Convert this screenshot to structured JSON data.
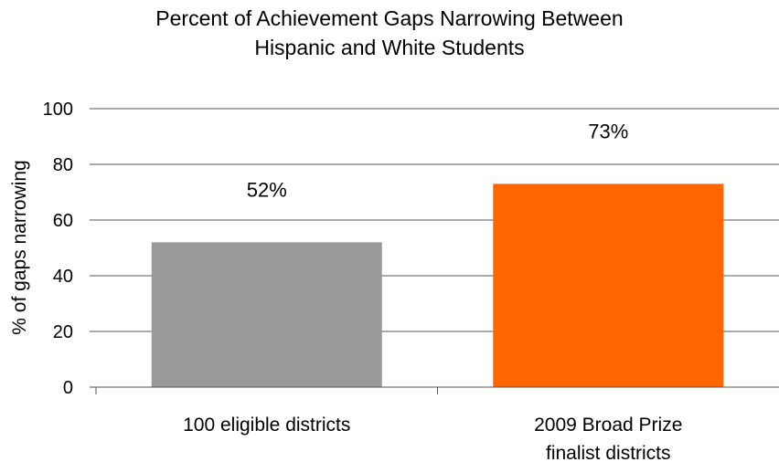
{
  "chart_data": {
    "type": "bar",
    "title": "Percent of Achievement Gaps Narrowing Between Hispanic and White Students",
    "title_lines": [
      "Percent of Achievement Gaps Narrowing Between",
      "Hispanic and White Students"
    ],
    "ylabel": "% of gaps narrowing",
    "xlabel": "",
    "ylim": [
      0,
      100
    ],
    "yticks": [
      0,
      20,
      40,
      60,
      80,
      100
    ],
    "grid": true,
    "categories": [
      {
        "label_lines": [
          "100 eligible districts"
        ],
        "label": "100 eligible districts"
      },
      {
        "label_lines": [
          "2009 Broad Prize",
          "finalist districts"
        ],
        "label": "2009 Broad Prize finalist districts"
      }
    ],
    "values": [
      52,
      73
    ],
    "data_labels": [
      "52%",
      "73%"
    ],
    "colors": [
      "#999999",
      "#ff6600"
    ]
  }
}
